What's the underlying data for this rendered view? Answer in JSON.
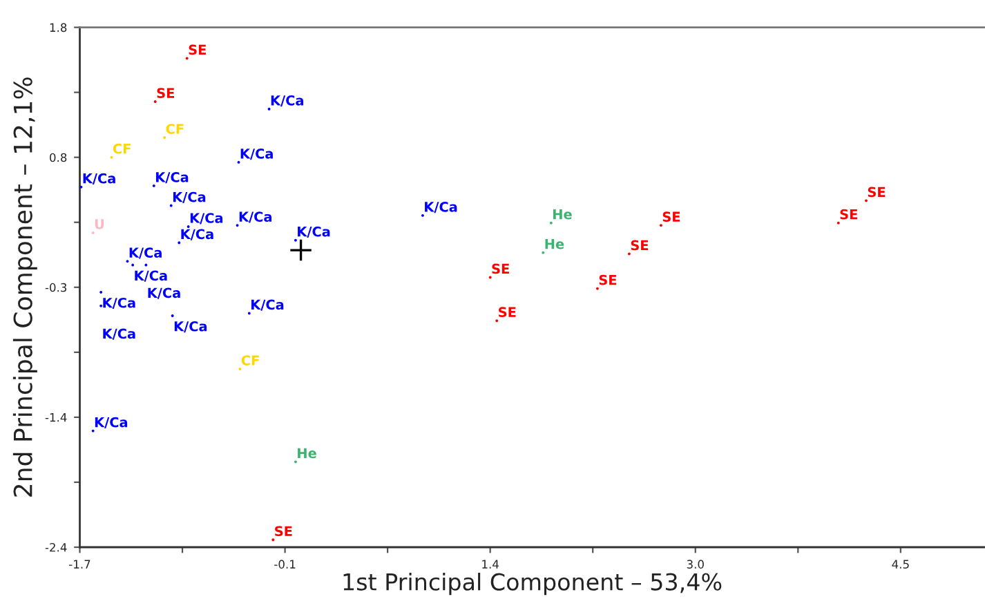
{
  "chart_data": {
    "type": "scatter",
    "xlabel": "1st Principal Component – 53,4%",
    "ylabel": "2nd Principal Component – 12,1%",
    "xlim": [
      -1.7,
      5.13
    ],
    "ylim": [
      -2.4,
      1.8
    ],
    "xticks": [
      -1.7,
      {
        "value": -0.925,
        "label": null
      },
      {
        "value": -0.15,
        "label": "-0.1"
      },
      {
        "value": 0.625,
        "label": null
      },
      1.4,
      {
        "value": 2.175,
        "label": null
      },
      {
        "value": 2.95,
        "label": "3.0"
      },
      {
        "value": 3.725,
        "label": null
      },
      4.5
    ],
    "yticks": [
      -2.4,
      {
        "value": -1.875,
        "label": null
      },
      {
        "value": -1.35,
        "label": "-1.4"
      },
      {
        "value": -0.825,
        "label": null
      },
      -0.3,
      {
        "value": 0.225,
        "label": null
      },
      {
        "value": 0.75,
        "label": "0.8"
      },
      {
        "value": 1.275,
        "label": null
      },
      1.8
    ],
    "grid": false,
    "legend": false,
    "marker": "circle",
    "series": [
      {
        "name": "SE",
        "color": "#ff0000",
        "x": [
          -0.89,
          -1.13,
          -0.24,
          1.4,
          1.45,
          2.69,
          2.45,
          2.21,
          4.03,
          4.24
        ],
        "values": [
          1.55,
          1.2,
          -2.34,
          -0.22,
          -0.57,
          0.2,
          -0.03,
          -0.31,
          0.22,
          0.4
        ]
      },
      {
        "name": "K/Ca",
        "color": "#0000ff",
        "x": [
          -0.27,
          -0.5,
          -1.69,
          -1.14,
          -1.01,
          -0.88,
          -0.51,
          -0.95,
          -0.07,
          -1.34,
          -1.3,
          -1.2,
          -1.54,
          -1.54,
          -1.0,
          -0.42,
          -1.6,
          0.89
        ],
        "values": [
          1.14,
          0.71,
          0.51,
          0.52,
          0.36,
          0.19,
          0.2,
          0.06,
          0.08,
          -0.09,
          -0.12,
          -0.12,
          -0.34,
          -0.45,
          -0.53,
          -0.51,
          -1.46,
          0.28
        ]
      },
      {
        "name": "CF",
        "color": "#ffd700",
        "x": [
          -1.06,
          -1.46,
          -0.49
        ],
        "values": [
          0.91,
          0.75,
          -0.96
        ]
      },
      {
        "name": "He",
        "color": "#3cb371",
        "x": [
          -0.07,
          1.86,
          1.8
        ],
        "values": [
          -1.71,
          0.22,
          -0.02
        ]
      },
      {
        "name": "U",
        "color": "#ffb6c1",
        "x": [
          -1.6
        ],
        "values": [
          0.14
        ]
      },
      {
        "color": "#000000",
        "marker": "cross",
        "x": [
          -0.03
        ],
        "values": [
          0.0
        ]
      }
    ]
  }
}
